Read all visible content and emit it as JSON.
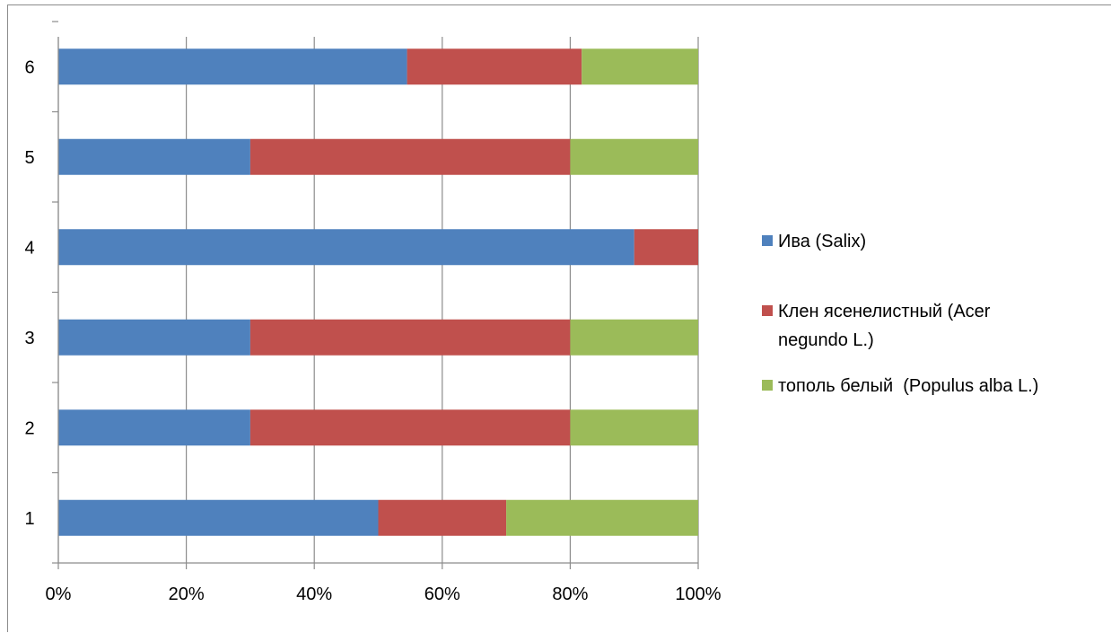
{
  "chart_data": {
    "type": "bar",
    "orientation": "horizontal",
    "stacked": "percent",
    "categories": [
      "1",
      "2",
      "3",
      "4",
      "5",
      "6"
    ],
    "series": [
      {
        "name": "Ива (Salix)",
        "color": "#4F81BD",
        "values": [
          50,
          30,
          30,
          90,
          30,
          54.5
        ]
      },
      {
        "name": "Клен ясенелистный (Acer negundo L.)",
        "legend_lines": [
          "Клен ясенелистный (Acer",
          "negundo L.)"
        ],
        "color": "#C0504D",
        "values": [
          20,
          50,
          50,
          10,
          50,
          27.3
        ]
      },
      {
        "name": "тополь белый  (Populus alba L.)",
        "color": "#9BBB59",
        "values": [
          30,
          20,
          20,
          0,
          20,
          18.2
        ]
      }
    ],
    "x_ticks": [
      "0%",
      "20%",
      "40%",
      "60%",
      "80%",
      "100%"
    ],
    "xlim": [
      0,
      100
    ],
    "title": "",
    "xlabel": "",
    "ylabel": "",
    "grid": "vertical",
    "legend": "right"
  }
}
